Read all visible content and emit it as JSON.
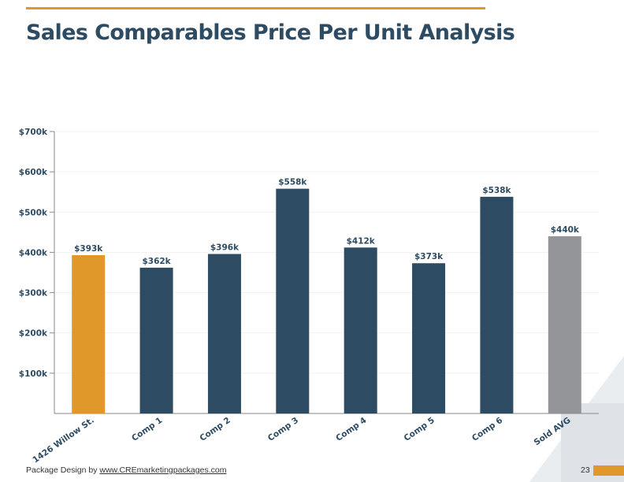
{
  "page": {
    "title": "Sales Comparables Price Per Unit Analysis",
    "footer_prefix": "Package Design by ",
    "footer_link": "www.CREmarketingpackages.com",
    "page_number": "23"
  },
  "colors": {
    "accent": "#e0982a",
    "navy": "#2d4b63",
    "gray": "#939598",
    "title": "#2d4b63"
  },
  "chart_data": {
    "type": "bar",
    "title": "",
    "xlabel": "",
    "ylabel": "",
    "categories": [
      "1426 Willow St.",
      "Comp 1",
      "Comp 2",
      "Comp 3",
      "Comp 4",
      "Comp 5",
      "Comp 6",
      "Sold AVG"
    ],
    "values": [
      393,
      362,
      396,
      558,
      412,
      373,
      538,
      440
    ],
    "value_labels": [
      "$393k",
      "$362k",
      "$396k",
      "$558k",
      "$412k",
      "$373k",
      "$538k",
      "$440k"
    ],
    "bar_colors": [
      "#e0982a",
      "#2d4b63",
      "#2d4b63",
      "#2d4b63",
      "#2d4b63",
      "#2d4b63",
      "#2d4b63",
      "#939598"
    ],
    "unit": "thousands USD",
    "ylim": [
      0,
      700
    ],
    "yticks": [
      100,
      200,
      300,
      400,
      500,
      600,
      700
    ],
    "ytick_labels": [
      "$100k",
      "$200k",
      "$300k",
      "$400k",
      "$500k",
      "$600k",
      "$700k"
    ],
    "grid": true,
    "legend": "none"
  }
}
